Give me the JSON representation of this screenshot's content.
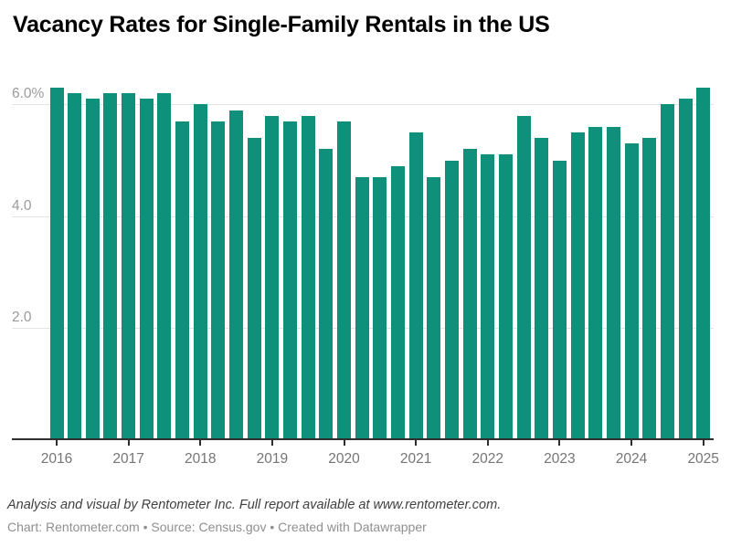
{
  "header": {
    "title": "Vacancy Rates for Single-Family Rentals in the US"
  },
  "chart_data": {
    "type": "bar",
    "title": "Vacancy Rates for Single-Family Rentals in the US",
    "unit": "%",
    "bar_color": "#0e907a",
    "grid": "horizontal gridlines on",
    "legend": "none",
    "xlabel": "",
    "ylabel": "",
    "ylim": [
      0,
      6.6
    ],
    "y_gridline_values": [
      6.0,
      4.0,
      2.0
    ],
    "y_tick_labels": [
      "6.0%",
      "4.0",
      "2.0"
    ],
    "x_tick_labels": [
      "2016",
      "2017",
      "2018",
      "2019",
      "2020",
      "2021",
      "2022",
      "2023",
      "2024",
      "2025"
    ],
    "categories": [
      "2016 Q1",
      "2016 Q2",
      "2016 Q3",
      "2016 Q4",
      "2017 Q1",
      "2017 Q2",
      "2017 Q3",
      "2017 Q4",
      "2018 Q1",
      "2018 Q2",
      "2018 Q3",
      "2018 Q4",
      "2019 Q1",
      "2019 Q2",
      "2019 Q3",
      "2019 Q4",
      "2020 Q1",
      "2020 Q2",
      "2020 Q3",
      "2020 Q4",
      "2021 Q1",
      "2021 Q2",
      "2021 Q3",
      "2021 Q4",
      "2022 Q1",
      "2022 Q2",
      "2022 Q3",
      "2022 Q4",
      "2023 Q1",
      "2023 Q2",
      "2023 Q3",
      "2023 Q4",
      "2024 Q1",
      "2024 Q2",
      "2024 Q3",
      "2024 Q4",
      "2025 Q1"
    ],
    "values": [
      6.3,
      6.2,
      6.1,
      6.2,
      6.2,
      6.1,
      6.2,
      5.7,
      6.0,
      5.7,
      5.9,
      5.4,
      5.8,
      5.7,
      5.8,
      5.2,
      5.7,
      4.7,
      4.7,
      4.9,
      5.5,
      4.7,
      5.0,
      5.2,
      5.1,
      5.1,
      5.8,
      5.4,
      5.0,
      5.5,
      5.6,
      5.6,
      5.3,
      5.4,
      6.0,
      6.1,
      6.3
    ]
  },
  "footer": {
    "note": "Analysis and visual by Rentometer Inc. Full report available at www.rentometer.com.",
    "credit": "Chart: Rentometer.com • Source: Census.gov • Created with Datawrapper"
  }
}
